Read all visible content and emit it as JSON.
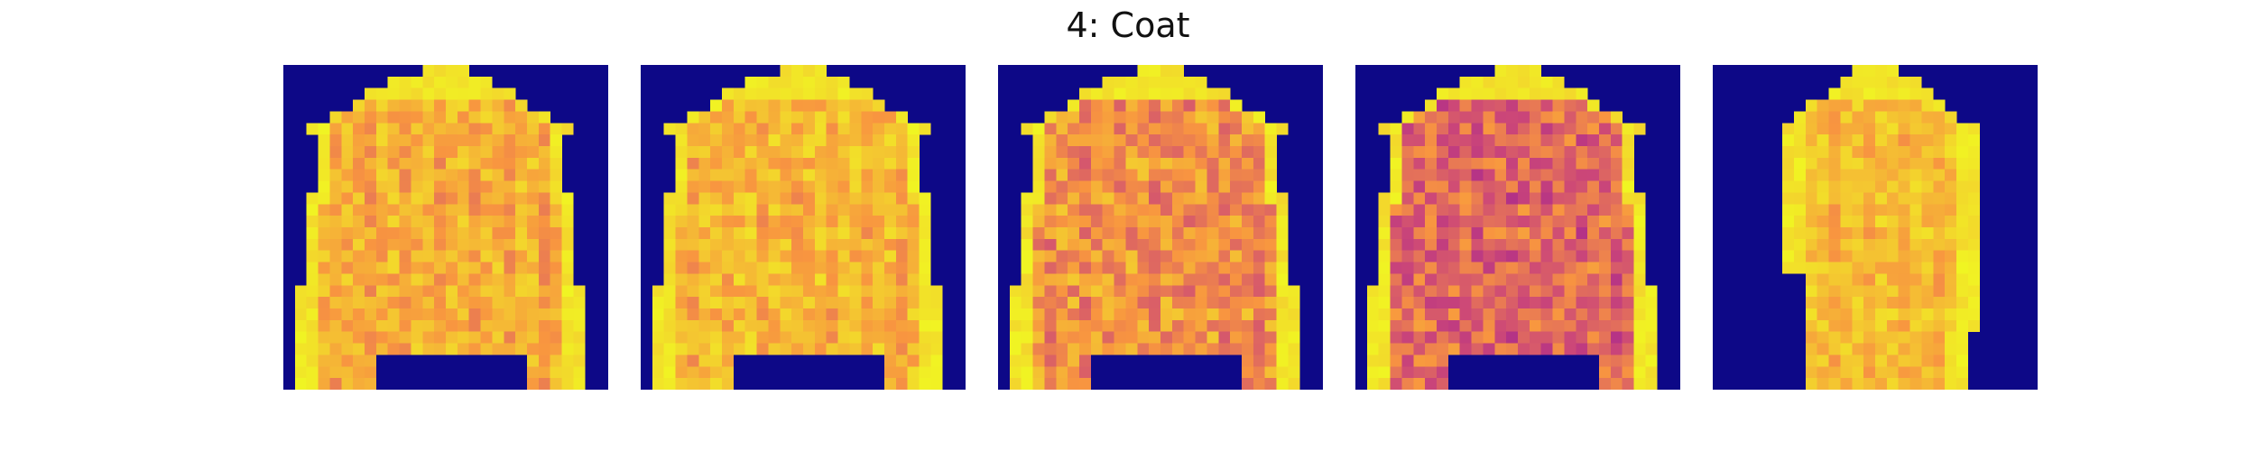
{
  "figure": {
    "title": "4: Coat",
    "class_index": 4,
    "class_name": "Coat",
    "colormap": "plasma",
    "background_color": "#0d0887",
    "grid": "28x28",
    "panels": [
      {
        "name": "coat-sample-1",
        "variant": "full-sleeves"
      },
      {
        "name": "coat-sample-2",
        "variant": "full-sleeves"
      },
      {
        "name": "coat-sample-3",
        "variant": "full-sleeves-darker-body"
      },
      {
        "name": "coat-sample-4",
        "variant": "full-sleeves-purple-body"
      },
      {
        "name": "coat-sample-5",
        "variant": "side-facing"
      }
    ]
  }
}
